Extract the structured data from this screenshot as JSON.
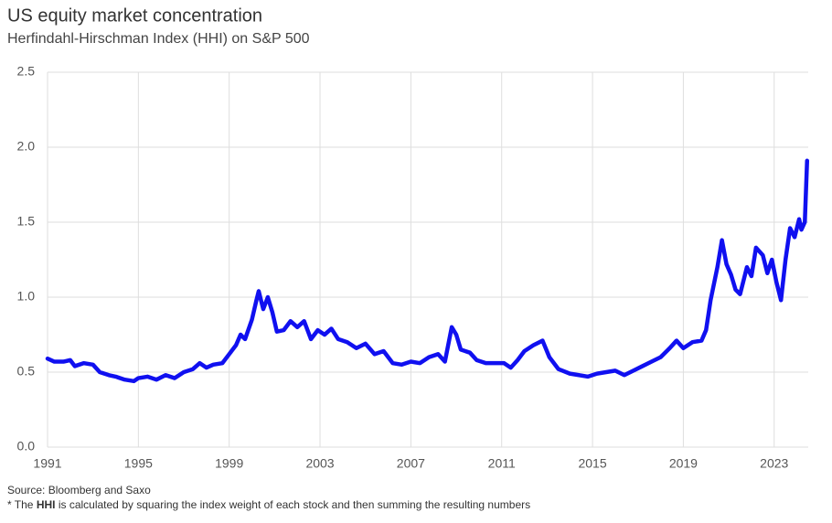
{
  "chart_data": {
    "type": "line",
    "title": "US equity market concentration",
    "subtitle": "Herfindahl-Hirschman Index (HHI) on S&P 500",
    "source": "Source: Bloomberg and Saxo",
    "footnote": {
      "prefix": "* The ",
      "bold": "HHI",
      "suffix": " is calculated by squaring the index weight of each stock and then summing the resulting numbers"
    },
    "grid": true,
    "xlim": [
      1991,
      2024.5
    ],
    "xticks": [
      1991,
      1995,
      1999,
      2003,
      2007,
      2011,
      2015,
      2019,
      2023
    ],
    "ylim": [
      0,
      2.5
    ],
    "yticks": [
      {
        "value": 0,
        "label": "0.0"
      },
      {
        "value": 0.5,
        "label": "0.5"
      },
      {
        "value": 1,
        "label": "1.0"
      },
      {
        "value": 1.5,
        "label": "1.5"
      },
      {
        "value": 2,
        "label": "2.0"
      },
      {
        "value": 2.5,
        "label": "2.5"
      }
    ],
    "x": [
      1991.0,
      1991.3,
      1991.7,
      1992.0,
      1992.2,
      1992.6,
      1993.0,
      1993.3,
      1993.7,
      1994.0,
      1994.4,
      1994.8,
      1995.0,
      1995.4,
      1995.8,
      1996.2,
      1996.6,
      1997.0,
      1997.4,
      1997.7,
      1998.0,
      1998.3,
      1998.7,
      1999.0,
      1999.3,
      1999.5,
      1999.7,
      2000.0,
      2000.2,
      2000.3,
      2000.5,
      2000.7,
      2000.9,
      2001.1,
      2001.4,
      2001.7,
      2002.0,
      2002.3,
      2002.6,
      2002.9,
      2003.2,
      2003.5,
      2003.8,
      2004.2,
      2004.6,
      2005.0,
      2005.4,
      2005.8,
      2006.2,
      2006.6,
      2007.0,
      2007.4,
      2007.8,
      2008.2,
      2008.5,
      2008.8,
      2009.0,
      2009.2,
      2009.6,
      2009.9,
      2010.3,
      2010.7,
      2011.1,
      2011.4,
      2011.7,
      2012.0,
      2012.4,
      2012.8,
      2013.1,
      2013.5,
      2014.0,
      2014.4,
      2014.8,
      2015.2,
      2015.6,
      2016.0,
      2016.4,
      2016.8,
      2017.2,
      2017.6,
      2018.0,
      2018.4,
      2018.7,
      2019.0,
      2019.4,
      2019.8,
      2020.0,
      2020.2,
      2020.5,
      2020.7,
      2020.9,
      2021.1,
      2021.3,
      2021.5,
      2021.8,
      2022.0,
      2022.2,
      2022.5,
      2022.7,
      2022.9,
      2023.1,
      2023.3,
      2023.5,
      2023.7,
      2023.9,
      2024.1,
      2024.2,
      2024.35,
      2024.45
    ],
    "series": [
      {
        "color": "#1010f0",
        "values": [
          0.59,
          0.57,
          0.57,
          0.58,
          0.54,
          0.56,
          0.55,
          0.5,
          0.48,
          0.47,
          0.45,
          0.44,
          0.46,
          0.47,
          0.45,
          0.48,
          0.46,
          0.5,
          0.52,
          0.56,
          0.53,
          0.55,
          0.56,
          0.62,
          0.68,
          0.75,
          0.72,
          0.85,
          0.98,
          1.04,
          0.92,
          1.0,
          0.9,
          0.77,
          0.78,
          0.84,
          0.8,
          0.84,
          0.72,
          0.78,
          0.75,
          0.79,
          0.72,
          0.7,
          0.66,
          0.69,
          0.62,
          0.64,
          0.56,
          0.55,
          0.57,
          0.56,
          0.6,
          0.62,
          0.57,
          0.8,
          0.75,
          0.65,
          0.63,
          0.58,
          0.56,
          0.56,
          0.56,
          0.53,
          0.58,
          0.64,
          0.68,
          0.71,
          0.6,
          0.52,
          0.49,
          0.48,
          0.47,
          0.49,
          0.5,
          0.51,
          0.48,
          0.51,
          0.54,
          0.57,
          0.6,
          0.66,
          0.71,
          0.66,
          0.7,
          0.71,
          0.78,
          0.98,
          1.2,
          1.38,
          1.22,
          1.15,
          1.05,
          1.02,
          1.2,
          1.14,
          1.33,
          1.28,
          1.16,
          1.25,
          1.1,
          0.98,
          1.25,
          1.46,
          1.4,
          1.52,
          1.45,
          1.5,
          1.91
        ]
      }
    ]
  }
}
